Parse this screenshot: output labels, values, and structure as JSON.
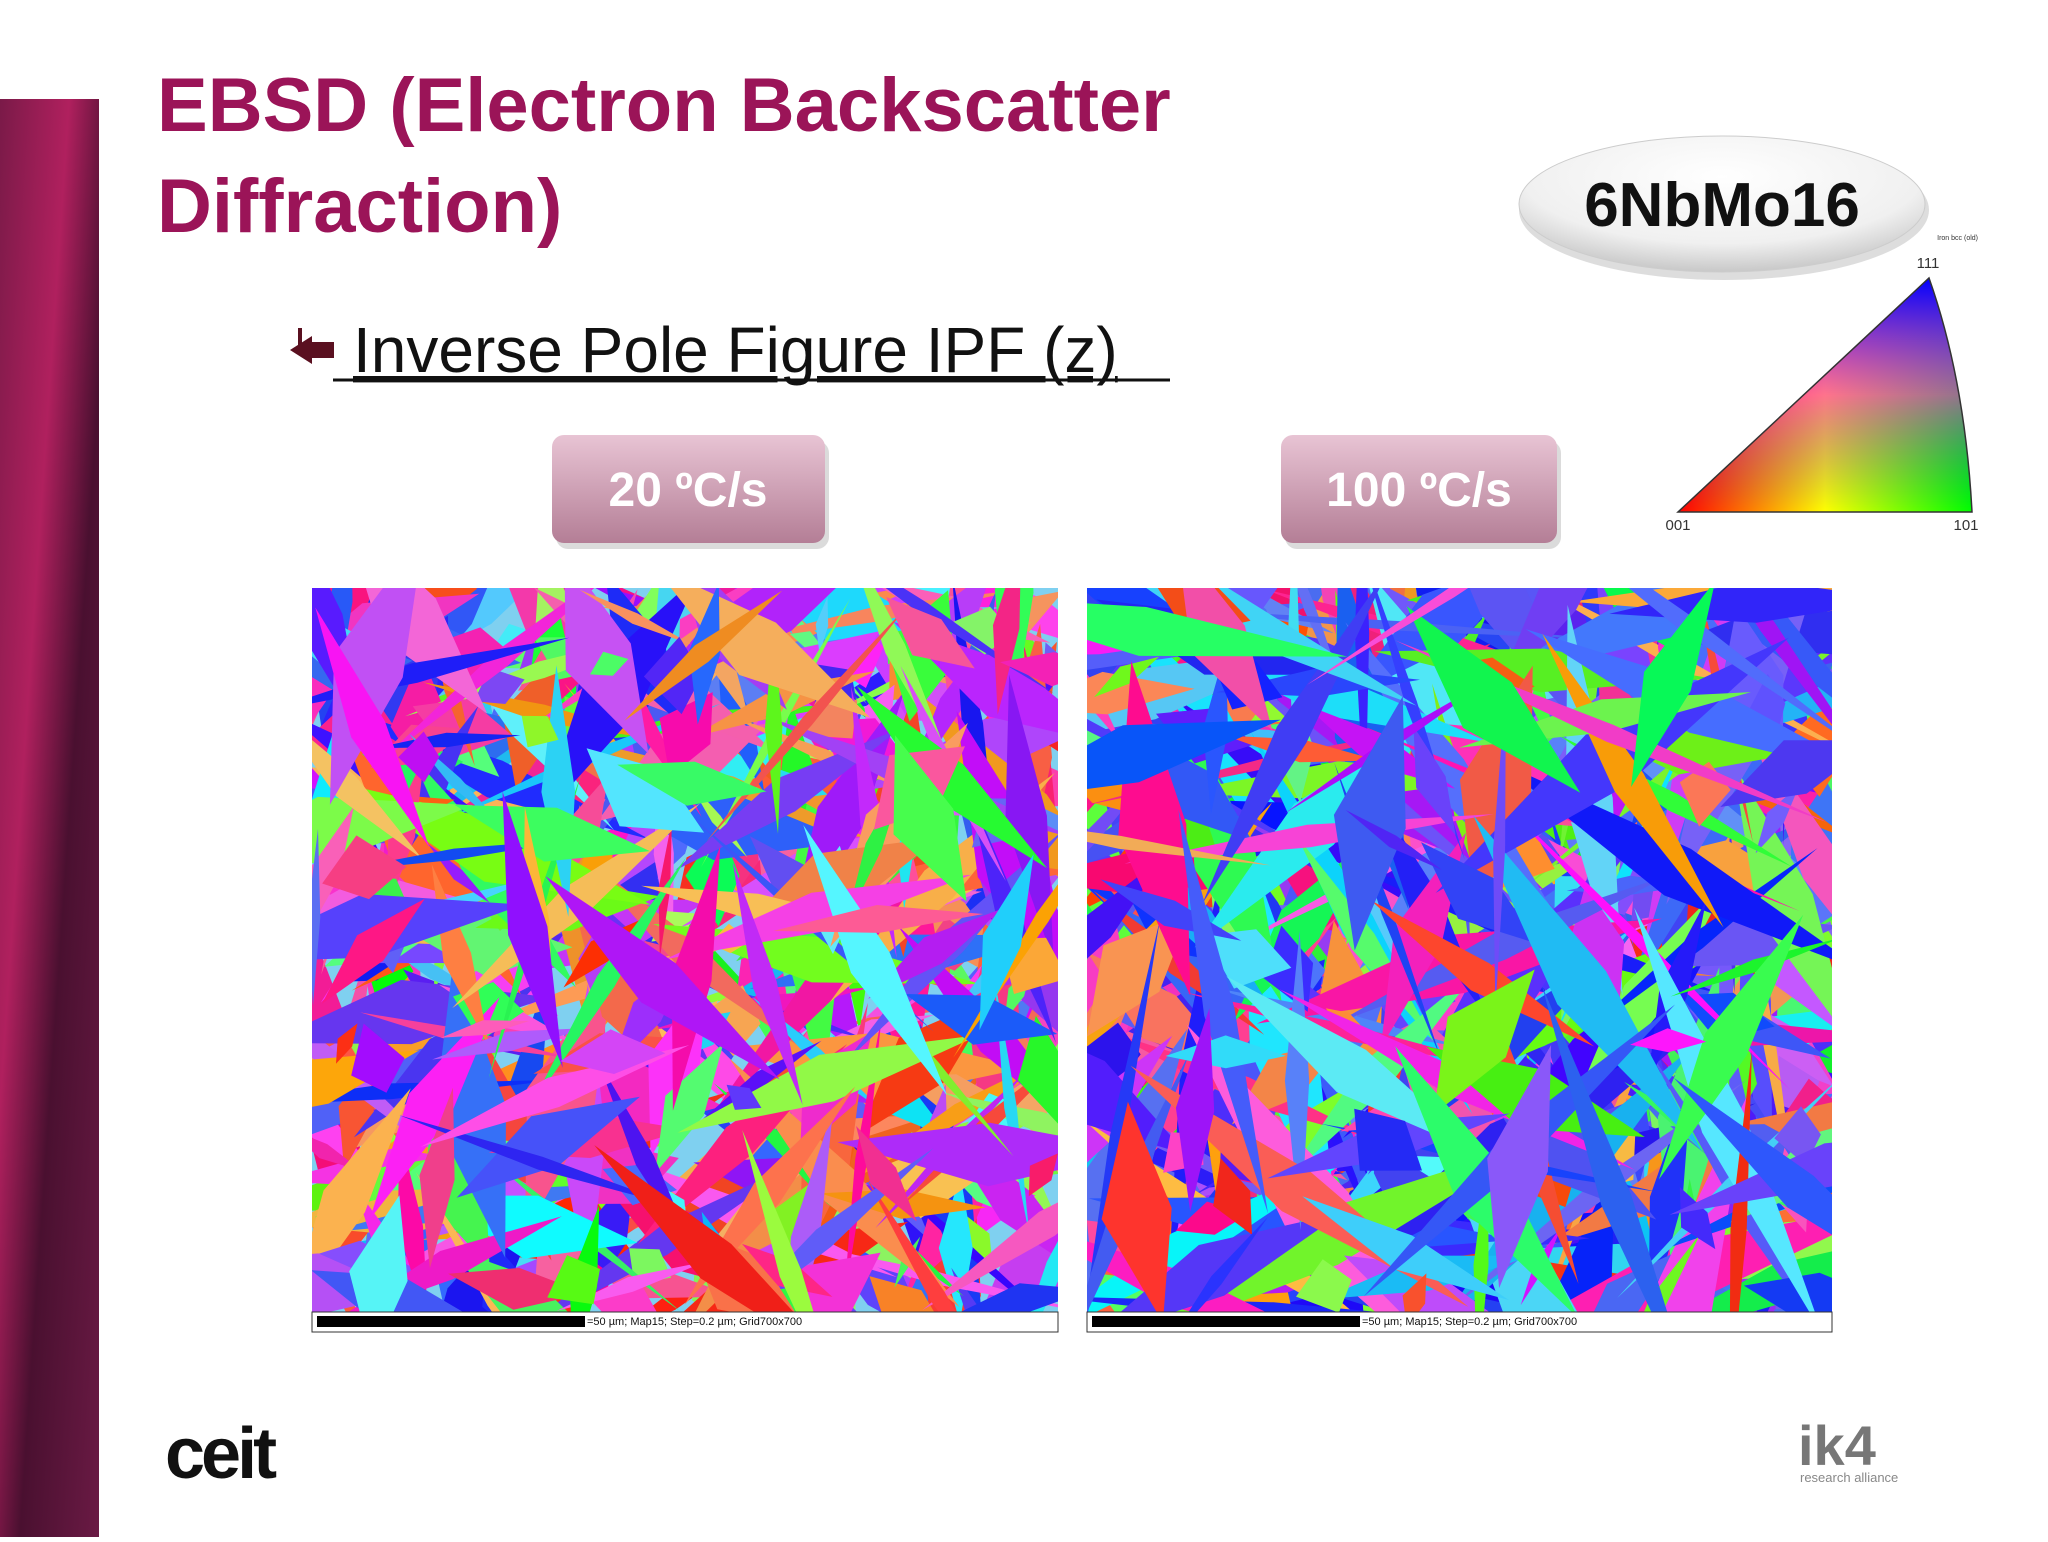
{
  "title": {
    "line1": "EBSD (Electron Backscatter",
    "line2": "Diffraction)"
  },
  "badge": "6NbMo16",
  "bullet": "Inverse Pole Figure IPF (z)",
  "maps": [
    {
      "label": "20 ºC/s",
      "caption": "=50 µm; Map15; Step=0.2 µm; Grid700x700"
    },
    {
      "label": "100 ºC/s",
      "caption": "=50 µm; Map15; Step=0.2 µm; Grid700x700"
    }
  ],
  "legend": {
    "title": "Iron bcc (old)",
    "corners": [
      "111",
      "001",
      "101"
    ]
  },
  "logos": {
    "left": "ceit",
    "right": "ik4",
    "right_sub": "research alliance"
  }
}
